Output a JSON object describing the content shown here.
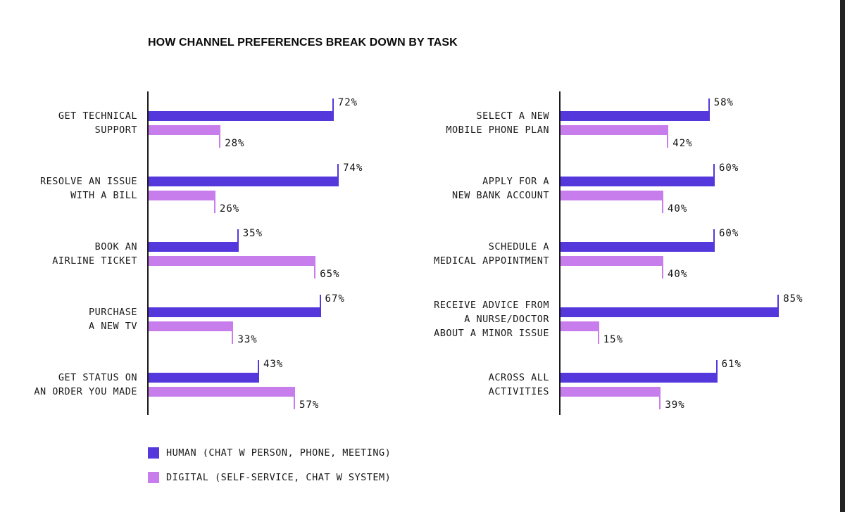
{
  "title": "HOW CHANNEL PREFERENCES BREAK DOWN BY TASK",
  "colors": {
    "human": "#5438dc",
    "digital": "#c77deb",
    "axis": "#1a1a1a",
    "text": "#101010",
    "edge_strip": "#232323"
  },
  "legend": [
    {
      "label": "HUMAN (CHAT W PERSON, PHONE, MEETING)",
      "color_key": "human"
    },
    {
      "label": "DIGITAL (SELF-SERVICE, CHAT W SYSTEM)",
      "color_key": "digital"
    }
  ],
  "chart_data": {
    "type": "bar",
    "orientation": "horizontal",
    "unit": "%",
    "xlim": [
      0,
      100
    ],
    "series_names": [
      "HUMAN",
      "DIGITAL"
    ],
    "columns": [
      {
        "name": "left",
        "tasks": [
          {
            "label_lines": [
              "GET TECHNICAL",
              "SUPPORT"
            ],
            "human": 72,
            "digital": 28
          },
          {
            "label_lines": [
              "RESOLVE AN ISSUE",
              "WITH A BILL"
            ],
            "human": 74,
            "digital": 26
          },
          {
            "label_lines": [
              "BOOK AN",
              "AIRLINE TICKET"
            ],
            "human": 35,
            "digital": 65
          },
          {
            "label_lines": [
              "PURCHASE",
              "A NEW TV"
            ],
            "human": 67,
            "digital": 33
          },
          {
            "label_lines": [
              "GET STATUS ON",
              "AN ORDER YOU MADE"
            ],
            "human": 43,
            "digital": 57
          }
        ]
      },
      {
        "name": "right",
        "tasks": [
          {
            "label_lines": [
              "SELECT A NEW",
              "MOBILE PHONE PLAN"
            ],
            "human": 58,
            "digital": 42
          },
          {
            "label_lines": [
              "APPLY FOR A",
              "NEW BANK ACCOUNT"
            ],
            "human": 60,
            "digital": 40
          },
          {
            "label_lines": [
              "SCHEDULE A",
              "MEDICAL APPOINTMENT"
            ],
            "human": 60,
            "digital": 40
          },
          {
            "label_lines": [
              "RECEIVE ADVICE FROM",
              "A NURSE/DOCTOR",
              "ABOUT A MINOR ISSUE"
            ],
            "human": 85,
            "digital": 15
          },
          {
            "label_lines": [
              "ACROSS ALL",
              "ACTIVITIES"
            ],
            "human": 61,
            "digital": 39
          }
        ]
      }
    ]
  }
}
